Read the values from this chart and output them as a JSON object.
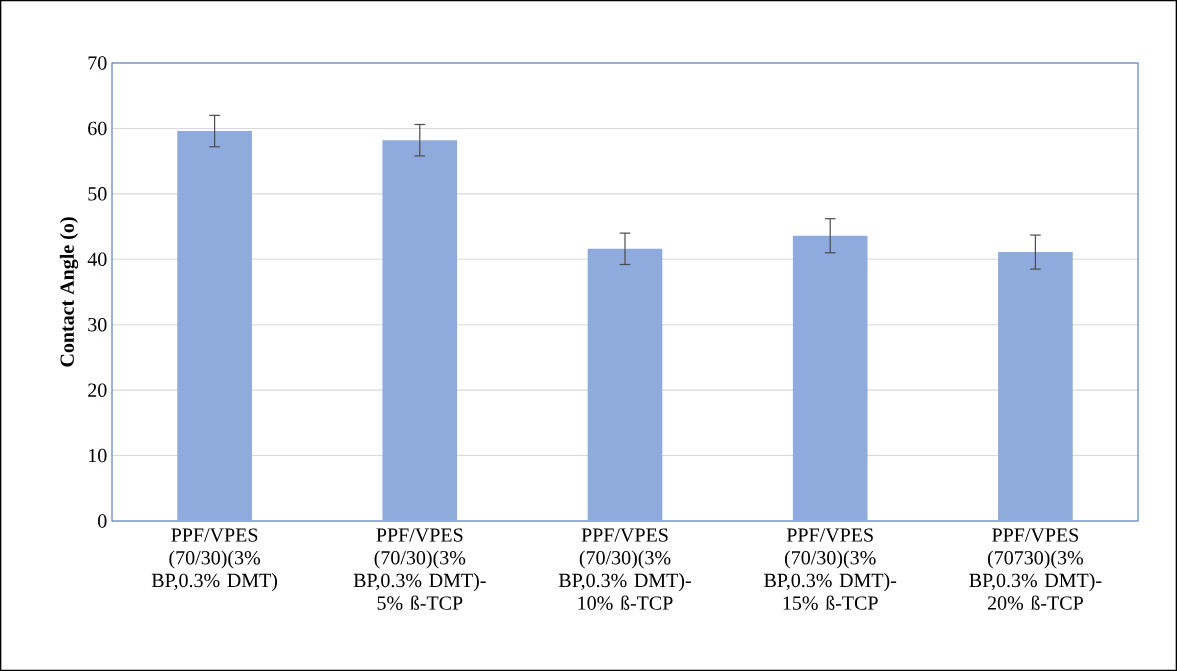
{
  "chart_data": {
    "type": "bar",
    "ylabel": "Contact Angle (o)",
    "categories": [
      "PPF/VPES (70/30)(3% BP,0.3% DMT)",
      "PPF/VPES (70/30)(3% BP,0.3% DMT)-5% ß-TCP",
      "PPF/VPES (70/30)(3% BP,0.3% DMT)-10% ß-TCP",
      "PPF/VPES (70/30)(3% BP,0.3% DMT)-15% ß-TCP",
      "PPF/VPES (70730)(3% BP,0.3% DMT)-20% ß-TCP"
    ],
    "values": [
      59.6,
      58.2,
      41.6,
      43.6,
      41.1
    ],
    "errors": [
      2.4,
      2.4,
      2.4,
      2.6,
      2.6
    ],
    "color": "#8faadc",
    "ylim": [
      0,
      70
    ],
    "yticks": [
      0,
      10,
      20,
      30,
      40,
      50,
      60,
      70
    ],
    "grid": "y"
  }
}
